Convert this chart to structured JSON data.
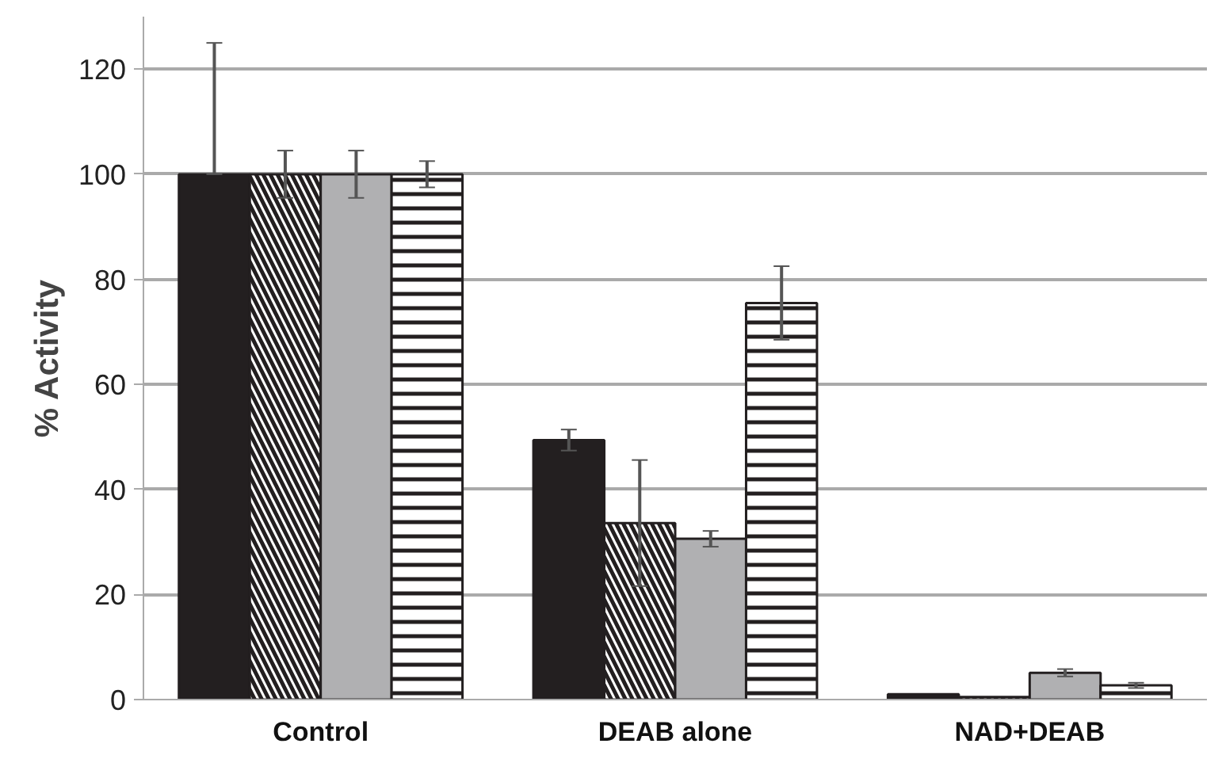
{
  "chart_data": {
    "type": "bar",
    "ylabel": "% Activity",
    "categories": [
      "Control",
      "DEAB alone",
      "NAD+DEAB"
    ],
    "series": [
      {
        "color": "#231f20",
        "values": [
          100,
          49.4,
          1
        ],
        "errors": [
          [
            100,
            125
          ],
          2,
          null
        ]
      },
      {
        "color": "#ffffff",
        "values": [
          100,
          33.6,
          0.5
        ],
        "errors": [
          4.5,
          12,
          null
        ]
      },
      {
        "color": "#b0b0b2",
        "values": [
          100,
          30.6,
          5.1
        ],
        "errors": [
          4.5,
          1.5,
          0.7
        ]
      },
      {
        "color": "#ffffff",
        "values": [
          100,
          75.5,
          2.7
        ],
        "errors": [
          2.5,
          7,
          0.5
        ]
      }
    ],
    "ylim": [
      0,
      130
    ],
    "yticks": [
      0,
      20,
      40,
      60,
      80,
      100,
      120
    ],
    "grid": "y"
  }
}
